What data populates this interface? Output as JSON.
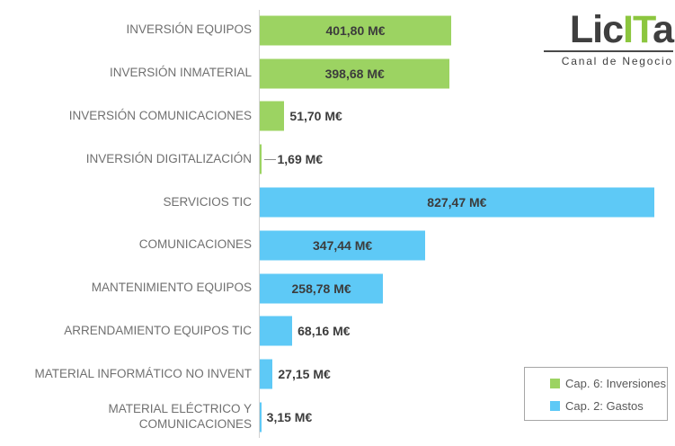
{
  "logo": {
    "part1": "Lic",
    "part2": "IT",
    "part3": "a",
    "subtitle": "Canal de Negocio"
  },
  "colors": {
    "series_green": "#9cd362",
    "series_blue": "#5ec9f6",
    "logo_green": "#8cc63f",
    "logo_dark": "#3f3f3f",
    "value_text": "#3c3c3c",
    "category_text": "#707070",
    "legend_text": "#595959",
    "legend_border": "#a6a6a6",
    "axis_line": "#d2d2d2",
    "background": "#ffffff"
  },
  "chart_data": {
    "type": "bar",
    "orientation": "horizontal",
    "title": "",
    "xlabel": "",
    "ylabel": "",
    "value_unit": "M€",
    "xmax": 860,
    "grid": false,
    "legend_position": "bottom-right",
    "series": [
      {
        "name": "Cap. 6: Inversiones",
        "color": "#9cd362"
      },
      {
        "name": "Cap. 2: Gastos",
        "color": "#5ec9f6"
      }
    ],
    "points": [
      {
        "category": "INVERSIÓN EQUIPOS",
        "value": 401.8,
        "value_label": "401,80 M€",
        "series": 0
      },
      {
        "category": "INVERSIÓN INMATERIAL",
        "value": 398.68,
        "value_label": "398,68 M€",
        "series": 0
      },
      {
        "category": "INVERSIÓN COMUNICACIONES",
        "value": 51.7,
        "value_label": "51,70 M€",
        "series": 0
      },
      {
        "category": "INVERSIÓN DIGITALIZACIÓN",
        "value": 1.69,
        "value_label": "1,69 M€",
        "series": 0,
        "leader_line": true
      },
      {
        "category": "SERVICIOS TIC",
        "value": 827.47,
        "value_label": "827,47 M€",
        "series": 1
      },
      {
        "category": "COMUNICACIONES",
        "value": 347.44,
        "value_label": "347,44 M€",
        "series": 1
      },
      {
        "category": "MANTENIMIENTO EQUIPOS",
        "value": 258.78,
        "value_label": "258,78 M€",
        "series": 1
      },
      {
        "category": "ARRENDAMIENTO EQUIPOS TIC",
        "value": 68.16,
        "value_label": "68,16 M€",
        "series": 1
      },
      {
        "category": "MATERIAL INFORMÁTICO NO INVENT",
        "value": 27.15,
        "value_label": "27,15 M€",
        "series": 1
      },
      {
        "category": "MATERIAL ELÉCTRICO Y COMUNICACIONES",
        "value": 3.15,
        "value_label": "3,15 M€",
        "series": 1
      }
    ]
  }
}
